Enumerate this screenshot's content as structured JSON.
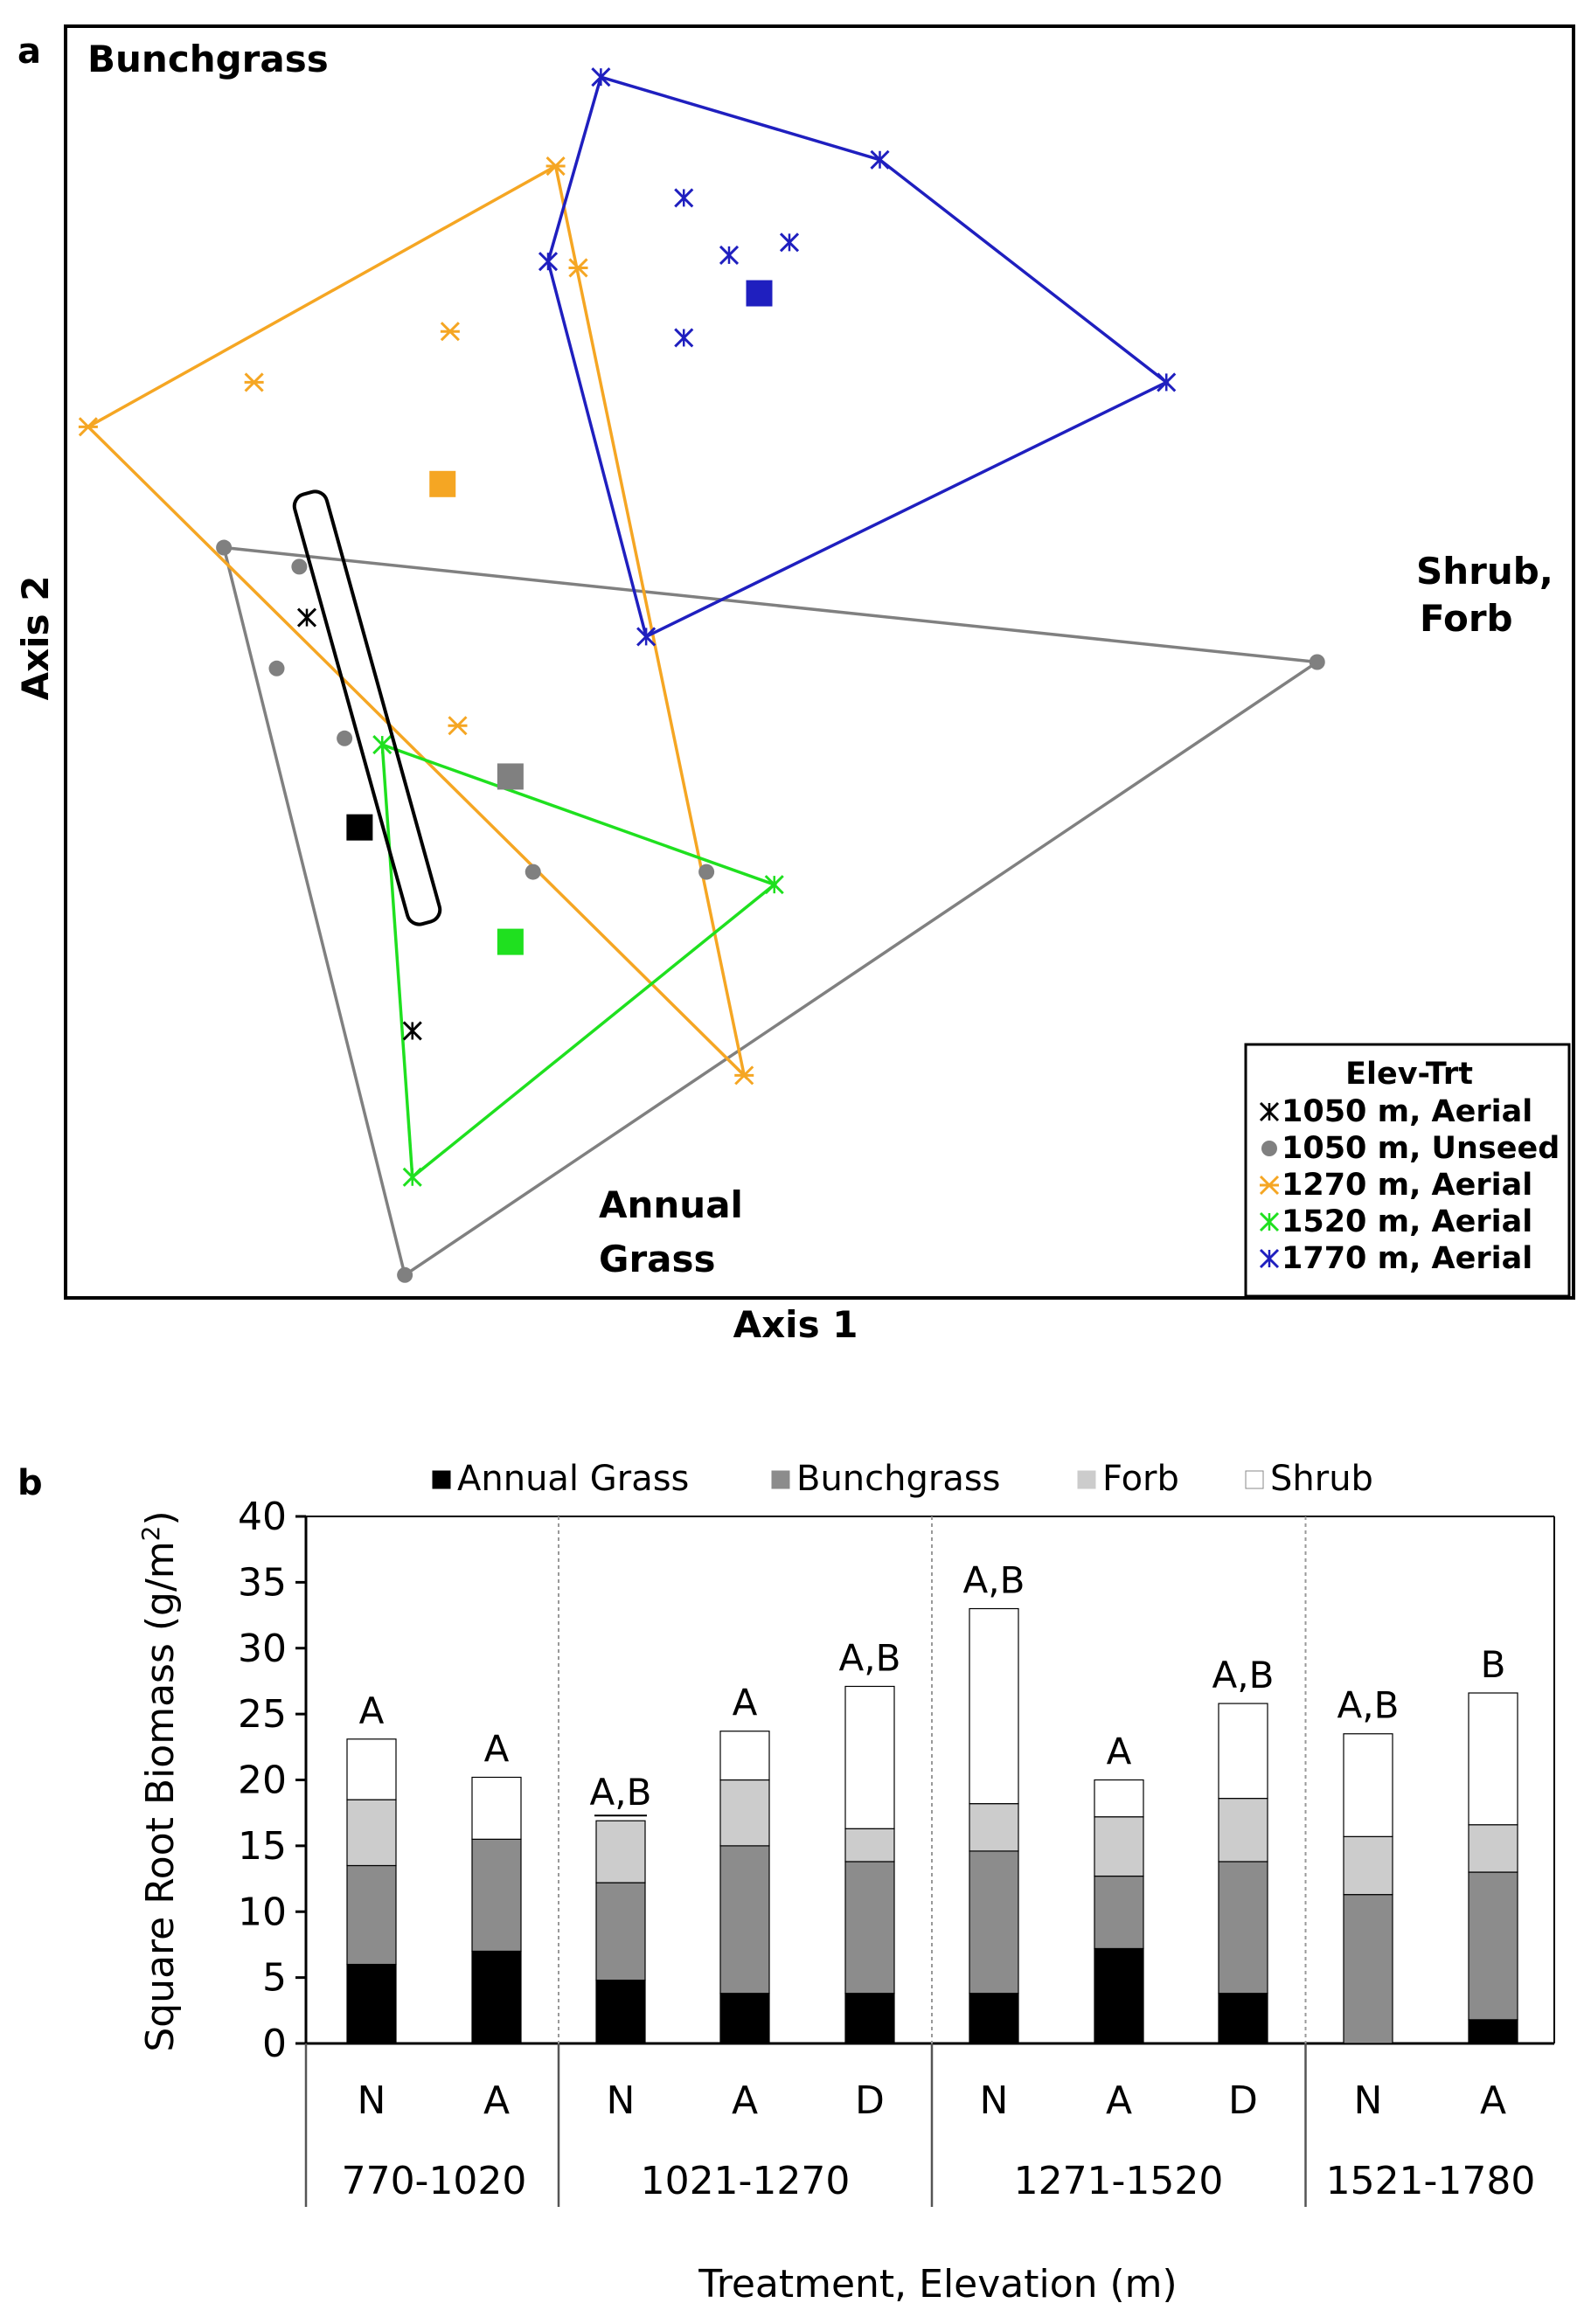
{
  "panel_a_label": "a",
  "panel_b_label": "b",
  "panel_a": {
    "region_labels": {
      "bunchgrass": "Bunchgrass",
      "shrub_forb_1": "Shrub,",
      "shrub_forb_2": "Forb",
      "annual_1": "Annual",
      "annual_2": "Grass"
    },
    "legend_title": "Elev-Trt",
    "groups": [
      {
        "label": "1050 m, Aerial",
        "color": "#000000",
        "marker": "x-icon"
      },
      {
        "label": "1050 m, Unseed",
        "color": "#808080",
        "marker": "dot-icon"
      },
      {
        "label": "1270 m, Aerial",
        "color": "#f5a623",
        "marker": "dash-icon"
      },
      {
        "label": "1520 m, Aerial",
        "color": "#1fe01f",
        "marker": "x-icon"
      },
      {
        "label": "1770 m, Aerial",
        "color": "#1f1fbf",
        "marker": "x-icon"
      }
    ]
  },
  "chart_data": [
    {
      "type": "scatter",
      "title": "",
      "xlabel": "Axis 1",
      "ylabel": "Axis 2",
      "xlim": [
        0,
        100
      ],
      "ylim": [
        0,
        100
      ],
      "series": [
        {
          "name": "1050 m, Aerial",
          "color": "#000000",
          "points": [
            [
              16,
              53.5
            ],
            [
              23,
              21
            ]
          ],
          "centroid": [
            19.5,
            37
          ]
        },
        {
          "name": "1050 m, Unseed",
          "color": "#808080",
          "points": [
            [
              10.5,
              59
            ],
            [
              15.5,
              57.5
            ],
            [
              14,
              49.5
            ],
            [
              18.5,
              44
            ],
            [
              31,
              33.5
            ],
            [
              42.5,
              33.5
            ],
            [
              83,
              50
            ],
            [
              22.5,
              1.8
            ]
          ],
          "centroid": [
            29.5,
            41
          ]
        },
        {
          "name": "1270 m, Aerial",
          "color": "#f5a623",
          "points": [
            [
              1.5,
              68.5
            ],
            [
              32.5,
              89
            ],
            [
              34,
              81
            ],
            [
              25.5,
              76
            ],
            [
              12.5,
              72
            ],
            [
              26,
              45
            ],
            [
              45,
              17.5
            ]
          ],
          "centroid": [
            25,
            64
          ]
        },
        {
          "name": "1520 m, Aerial",
          "color": "#1fe01f",
          "points": [
            [
              21,
              43.5
            ],
            [
              47,
              32.5
            ],
            [
              23,
              9.5
            ]
          ],
          "centroid": [
            29.5,
            28
          ]
        },
        {
          "name": "1770 m, Aerial",
          "color": "#1f1fbf",
          "points": [
            [
              35.5,
              96
            ],
            [
              54,
              89.5
            ],
            [
              73,
              72
            ],
            [
              38.5,
              52
            ],
            [
              32,
              81.5
            ],
            [
              41,
              86.5
            ],
            [
              44,
              82
            ],
            [
              48,
              83
            ],
            [
              41,
              75.5
            ]
          ],
          "centroid": [
            46,
            79
          ]
        }
      ],
      "hulls": {
        "1050 m, Unseed": [
          [
            10.5,
            59
          ],
          [
            83,
            50
          ],
          [
            22.5,
            1.8
          ]
        ],
        "1270 m, Aerial": [
          [
            1.5,
            68.5
          ],
          [
            32.5,
            89
          ],
          [
            45,
            17.5
          ]
        ],
        "1520 m, Aerial": [
          [
            21,
            43.5
          ],
          [
            47,
            32.5
          ],
          [
            23,
            9.5
          ]
        ],
        "1770 m, Aerial": [
          [
            35.5,
            96
          ],
          [
            54,
            89.5
          ],
          [
            73,
            72
          ],
          [
            38.5,
            52
          ],
          [
            32,
            81.5
          ]
        ]
      }
    },
    {
      "type": "bar",
      "stacked": true,
      "title": "",
      "xlabel": "Treatment, Elevation (m)",
      "ylabel_main": "Square Root Biomass (g/m",
      "ylabel_sup": "2",
      "ylabel_end": ")",
      "ylim": [
        0,
        40
      ],
      "yticks": [
        "0",
        "5",
        "10",
        "15",
        "20",
        "25",
        "30",
        "35",
        "40"
      ],
      "categories": [
        "N",
        "A",
        "N",
        "A",
        "D",
        "N",
        "A",
        "D",
        "N",
        "A"
      ],
      "groups": [
        {
          "label": "770-1020",
          "count": 2
        },
        {
          "label": "1021-1270",
          "count": 3
        },
        {
          "label": "1271-1520",
          "count": 3
        },
        {
          "label": "1521-1780",
          "count": 2
        }
      ],
      "series": [
        {
          "name": "Annual Grass",
          "color": "#000000",
          "values": [
            6,
            7,
            4.8,
            3.8,
            3.8,
            3.8,
            7.2,
            3.8,
            0,
            1.8
          ]
        },
        {
          "name": "Bunchgrass",
          "color": "#8c8c8c",
          "values": [
            7.5,
            8.5,
            7.4,
            11.2,
            10,
            10.8,
            5.5,
            10,
            11.3,
            11.2
          ]
        },
        {
          "name": "Forb",
          "color": "#cccccc",
          "values": [
            5,
            0,
            4.7,
            5,
            2.5,
            3.6,
            4.5,
            4.8,
            4.4,
            3.6
          ]
        },
        {
          "name": "Shrub",
          "color": "#ffffff",
          "values": [
            4.6,
            4.7,
            0,
            3.7,
            10.8,
            14.8,
            2.8,
            7.2,
            7.8,
            10
          ]
        }
      ],
      "significance": [
        "A",
        "A",
        "A,B",
        "A",
        "A,B",
        "A,B",
        "A",
        "A,B",
        "A,B",
        "B"
      ]
    }
  ]
}
